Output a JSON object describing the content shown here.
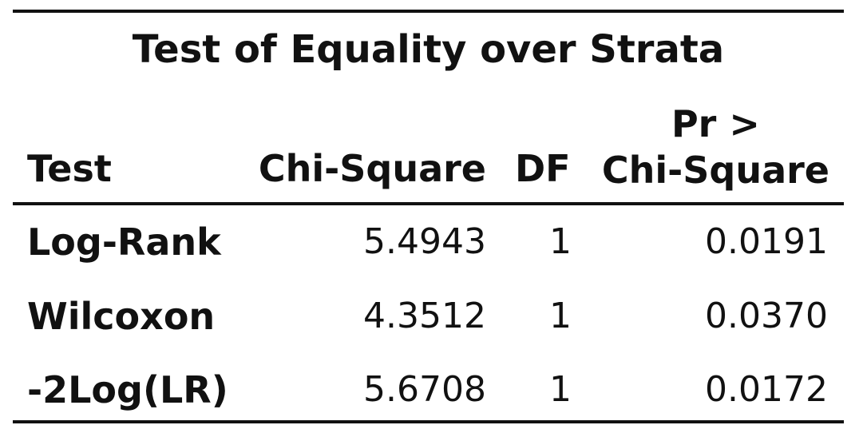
{
  "table": {
    "title": "Test of Equality over Strata",
    "headers": {
      "test": "Test",
      "chi_square": "Chi-Square",
      "df": "DF",
      "pr_line1": "Pr >",
      "pr_line2": "Chi-Square"
    },
    "rows": [
      {
        "test": "Log-Rank",
        "chi_square": "5.4943",
        "df": "1",
        "pr": "0.0191"
      },
      {
        "test": "Wilcoxon",
        "chi_square": "4.3512",
        "df": "1",
        "pr": "0.0370"
      },
      {
        "test": "-2Log(LR)",
        "chi_square": "5.6708",
        "df": "1",
        "pr": "0.0172"
      }
    ]
  }
}
